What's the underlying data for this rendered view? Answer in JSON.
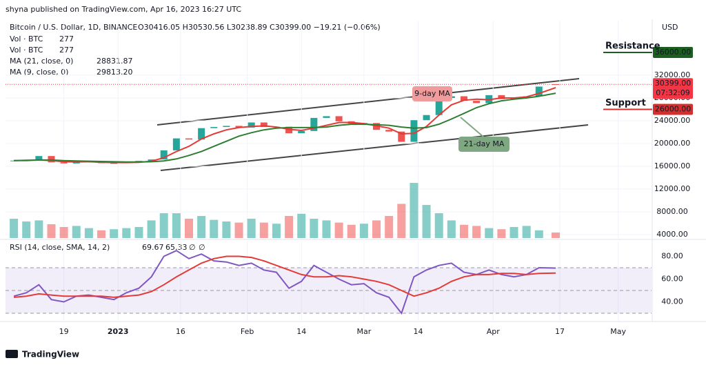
{
  "header": {
    "published": "shyna published on TradingView.com, Apr 16, 2023 16:27 UTC",
    "footer": "TradingView"
  },
  "chart_data": [
    {
      "type": "candlestick",
      "title": "Bitcoin / U.S. Dollar, 1D, BINANCE",
      "ohlc_text": "O30416.05 H30530.56 L30238.89 C30399.00 −19.21 (−0.06%)",
      "ohlc_color": "#e53935",
      "axis_label": "USD",
      "indicators": [
        {
          "label": "Vol · BTC",
          "value": "277",
          "color": "#e53935"
        },
        {
          "label": "Vol · BTC",
          "value": "277",
          "color": "#e53935"
        },
        {
          "label": "MA (21, close, 0)",
          "value": "28831.87",
          "color": "#2e7d32"
        },
        {
          "label": "MA (9, close, 0)",
          "value": "29813.20",
          "color": "#e53935"
        }
      ],
      "x": [
        "2022-12-07",
        "2022-12-10",
        "2022-12-13",
        "2022-12-16",
        "2022-12-19",
        "2022-12-22",
        "2022-12-25",
        "2022-12-28",
        "2022-12-31",
        "2023-01-03",
        "2023-01-06",
        "2023-01-09",
        "2023-01-12",
        "2023-01-15",
        "2023-01-18",
        "2023-01-21",
        "2023-01-24",
        "2023-01-27",
        "2023-01-30",
        "2023-02-02",
        "2023-02-05",
        "2023-02-08",
        "2023-02-11",
        "2023-02-14",
        "2023-02-17",
        "2023-02-20",
        "2023-02-23",
        "2023-02-26",
        "2023-03-01",
        "2023-03-04",
        "2023-03-07",
        "2023-03-10",
        "2023-03-13",
        "2023-03-16",
        "2023-03-19",
        "2023-03-22",
        "2023-03-25",
        "2023-03-28",
        "2023-03-31",
        "2023-04-03",
        "2023-04-06",
        "2023-04-09",
        "2023-04-12",
        "2023-04-16"
      ],
      "open": [
        16950,
        17000,
        17150,
        17800,
        16700,
        16500,
        16850,
        16850,
        16550,
        16550,
        16700,
        16950,
        17200,
        18800,
        20900,
        20700,
        22700,
        22900,
        23100,
        22800,
        23700,
        22900,
        22950,
        21800,
        22200,
        24500,
        24800,
        23900,
        23500,
        23600,
        22400,
        22100,
        20300,
        24100,
        25000,
        28000,
        28300,
        27500,
        27100,
        28500,
        27800,
        28000,
        28300,
        30416.05
      ],
      "close": [
        17000,
        17150,
        17800,
        16700,
        16500,
        16850,
        16850,
        16550,
        16550,
        16700,
        16950,
        17200,
        18800,
        20900,
        20700,
        22700,
        22900,
        23100,
        22800,
        23700,
        22900,
        22950,
        21800,
        22200,
        24500,
        24800,
        23900,
        23500,
        23600,
        22400,
        22100,
        20300,
        24100,
        25000,
        28000,
        28300,
        27500,
        27100,
        28500,
        27800,
        28000,
        28300,
        30000,
        30399
      ],
      "up_color": "#26a69a",
      "down_color": "#ef5350",
      "series": [
        {
          "color": "#e53935",
          "values": [
            17000,
            17000,
            17100,
            17000,
            16800,
            16750,
            16800,
            16700,
            16650,
            16650,
            16700,
            16900,
            17500,
            18600,
            19500,
            20800,
            21700,
            22400,
            22800,
            23000,
            23100,
            22900,
            22500,
            22300,
            22700,
            23200,
            23700,
            23700,
            23500,
            23100,
            22700,
            21700,
            21800,
            23000,
            25000,
            26800,
            27600,
            27800,
            27700,
            28000,
            28000,
            28200,
            28800,
            29813.2
          ]
        },
        {
          "color": "#2e7d32",
          "values": [
            17000,
            17050,
            17100,
            17100,
            17000,
            16950,
            16900,
            16850,
            16800,
            16750,
            16750,
            16800,
            16950,
            17300,
            17900,
            18600,
            19500,
            20400,
            21300,
            21900,
            22400,
            22700,
            22800,
            22800,
            22800,
            22900,
            23200,
            23400,
            23400,
            23300,
            23200,
            22900,
            22700,
            22800,
            23400,
            24300,
            25300,
            26300,
            27000,
            27500,
            27800,
            28000,
            28300,
            28831.87
          ]
        }
      ],
      "volume": {
        "values": [
          35,
          30,
          32,
          25,
          20,
          22,
          18,
          14,
          16,
          18,
          20,
          32,
          45,
          45,
          35,
          40,
          33,
          30,
          28,
          35,
          28,
          26,
          40,
          44,
          35,
          32,
          28,
          24,
          26,
          32,
          40,
          62,
          100,
          60,
          45,
          32,
          24,
          22,
          18,
          16,
          20,
          22,
          14,
          10
        ]
      },
      "y2lim": [
        0,
        394
      ],
      "ylim": [
        3394,
        41576
      ],
      "yticks": [
        {
          "value": 4000,
          "label": "4000.00"
        },
        {
          "value": 8000,
          "label": "8000.00"
        },
        {
          "value": 12000,
          "label": "12000.00"
        },
        {
          "value": 16000,
          "label": "16000.00"
        },
        {
          "value": 20000,
          "label": "20000.00"
        },
        {
          "value": 24000,
          "label": "24000.00"
        },
        {
          "value": 28000,
          "label": "28000.00"
        },
        {
          "value": 32000,
          "label": "32000.00"
        }
      ],
      "xlim": [
        "2022-12-05",
        "2023-05-09"
      ],
      "xticks": [
        {
          "value": "2022-12-19",
          "label": "19"
        },
        {
          "value": "2023-01-01",
          "label": "2023"
        },
        {
          "value": "2023-01-16",
          "label": "16"
        },
        {
          "value": "2023-02-01",
          "label": "Feb"
        },
        {
          "value": "2023-02-14",
          "label": "14"
        },
        {
          "value": "2023-03-01",
          "label": "Mar"
        },
        {
          "value": "2023-03-14",
          "label": "14"
        },
        {
          "value": "2023-04-01",
          "label": "Apr"
        },
        {
          "value": "2023-04-17",
          "label": "17"
        },
        {
          "value": "2023-05-01",
          "label": "May"
        }
      ],
      "last_price": {
        "value": 30399,
        "label": "30399.00",
        "countdown": "07:32:09",
        "color": "#f23645"
      },
      "levels": [
        {
          "text": "Resistance",
          "text_color": "#d32f2f",
          "value": 36000,
          "label": "36000.00",
          "color": "#1b5e20"
        },
        {
          "text": "Support",
          "text_color": "#1b5e20",
          "value": 26000,
          "label": "26000.00",
          "color": "#d32f2f"
        }
      ],
      "annotations": [
        {
          "text": "9-day MA",
          "color": "#f19c9c"
        },
        {
          "text": "21-day MA",
          "color": "#7fa882"
        }
      ],
      "grid": true
    },
    {
      "type": "line",
      "title": "RSI (14, close, SMA, 14, 2)",
      "legend_values": [
        "69.67",
        "65.33",
        "∅",
        "∅"
      ],
      "series": [
        {
          "color": "#7e57c2",
          "values": [
            45,
            48,
            55,
            42,
            40,
            45,
            46,
            44,
            42,
            48,
            52,
            62,
            80,
            85,
            78,
            82,
            76,
            75,
            72,
            74,
            68,
            66,
            52,
            58,
            72,
            66,
            60,
            55,
            56,
            48,
            44,
            30,
            62,
            68,
            72,
            74,
            66,
            64,
            68,
            64,
            62,
            64,
            70,
            69.67
          ]
        },
        {
          "color": "#e53935",
          "values": [
            44,
            45,
            47,
            46,
            45,
            45,
            45,
            45,
            44,
            45,
            46,
            49,
            55,
            62,
            68,
            74,
            78,
            80,
            80,
            79,
            76,
            72,
            68,
            64,
            62,
            62,
            63,
            62,
            60,
            58,
            55,
            50,
            45,
            48,
            52,
            58,
            62,
            64,
            64,
            65,
            65,
            64,
            65,
            65.33
          ]
        }
      ],
      "ylim": [
        23.3,
        90
      ],
      "yticks": [
        {
          "value": 80,
          "label": "80.00"
        },
        {
          "value": 60,
          "label": "60.00"
        },
        {
          "value": 40,
          "label": "40.00"
        }
      ],
      "levels": [
        70,
        50,
        30
      ],
      "band": [
        30,
        70
      ],
      "band_color": "#7e57c2"
    }
  ]
}
